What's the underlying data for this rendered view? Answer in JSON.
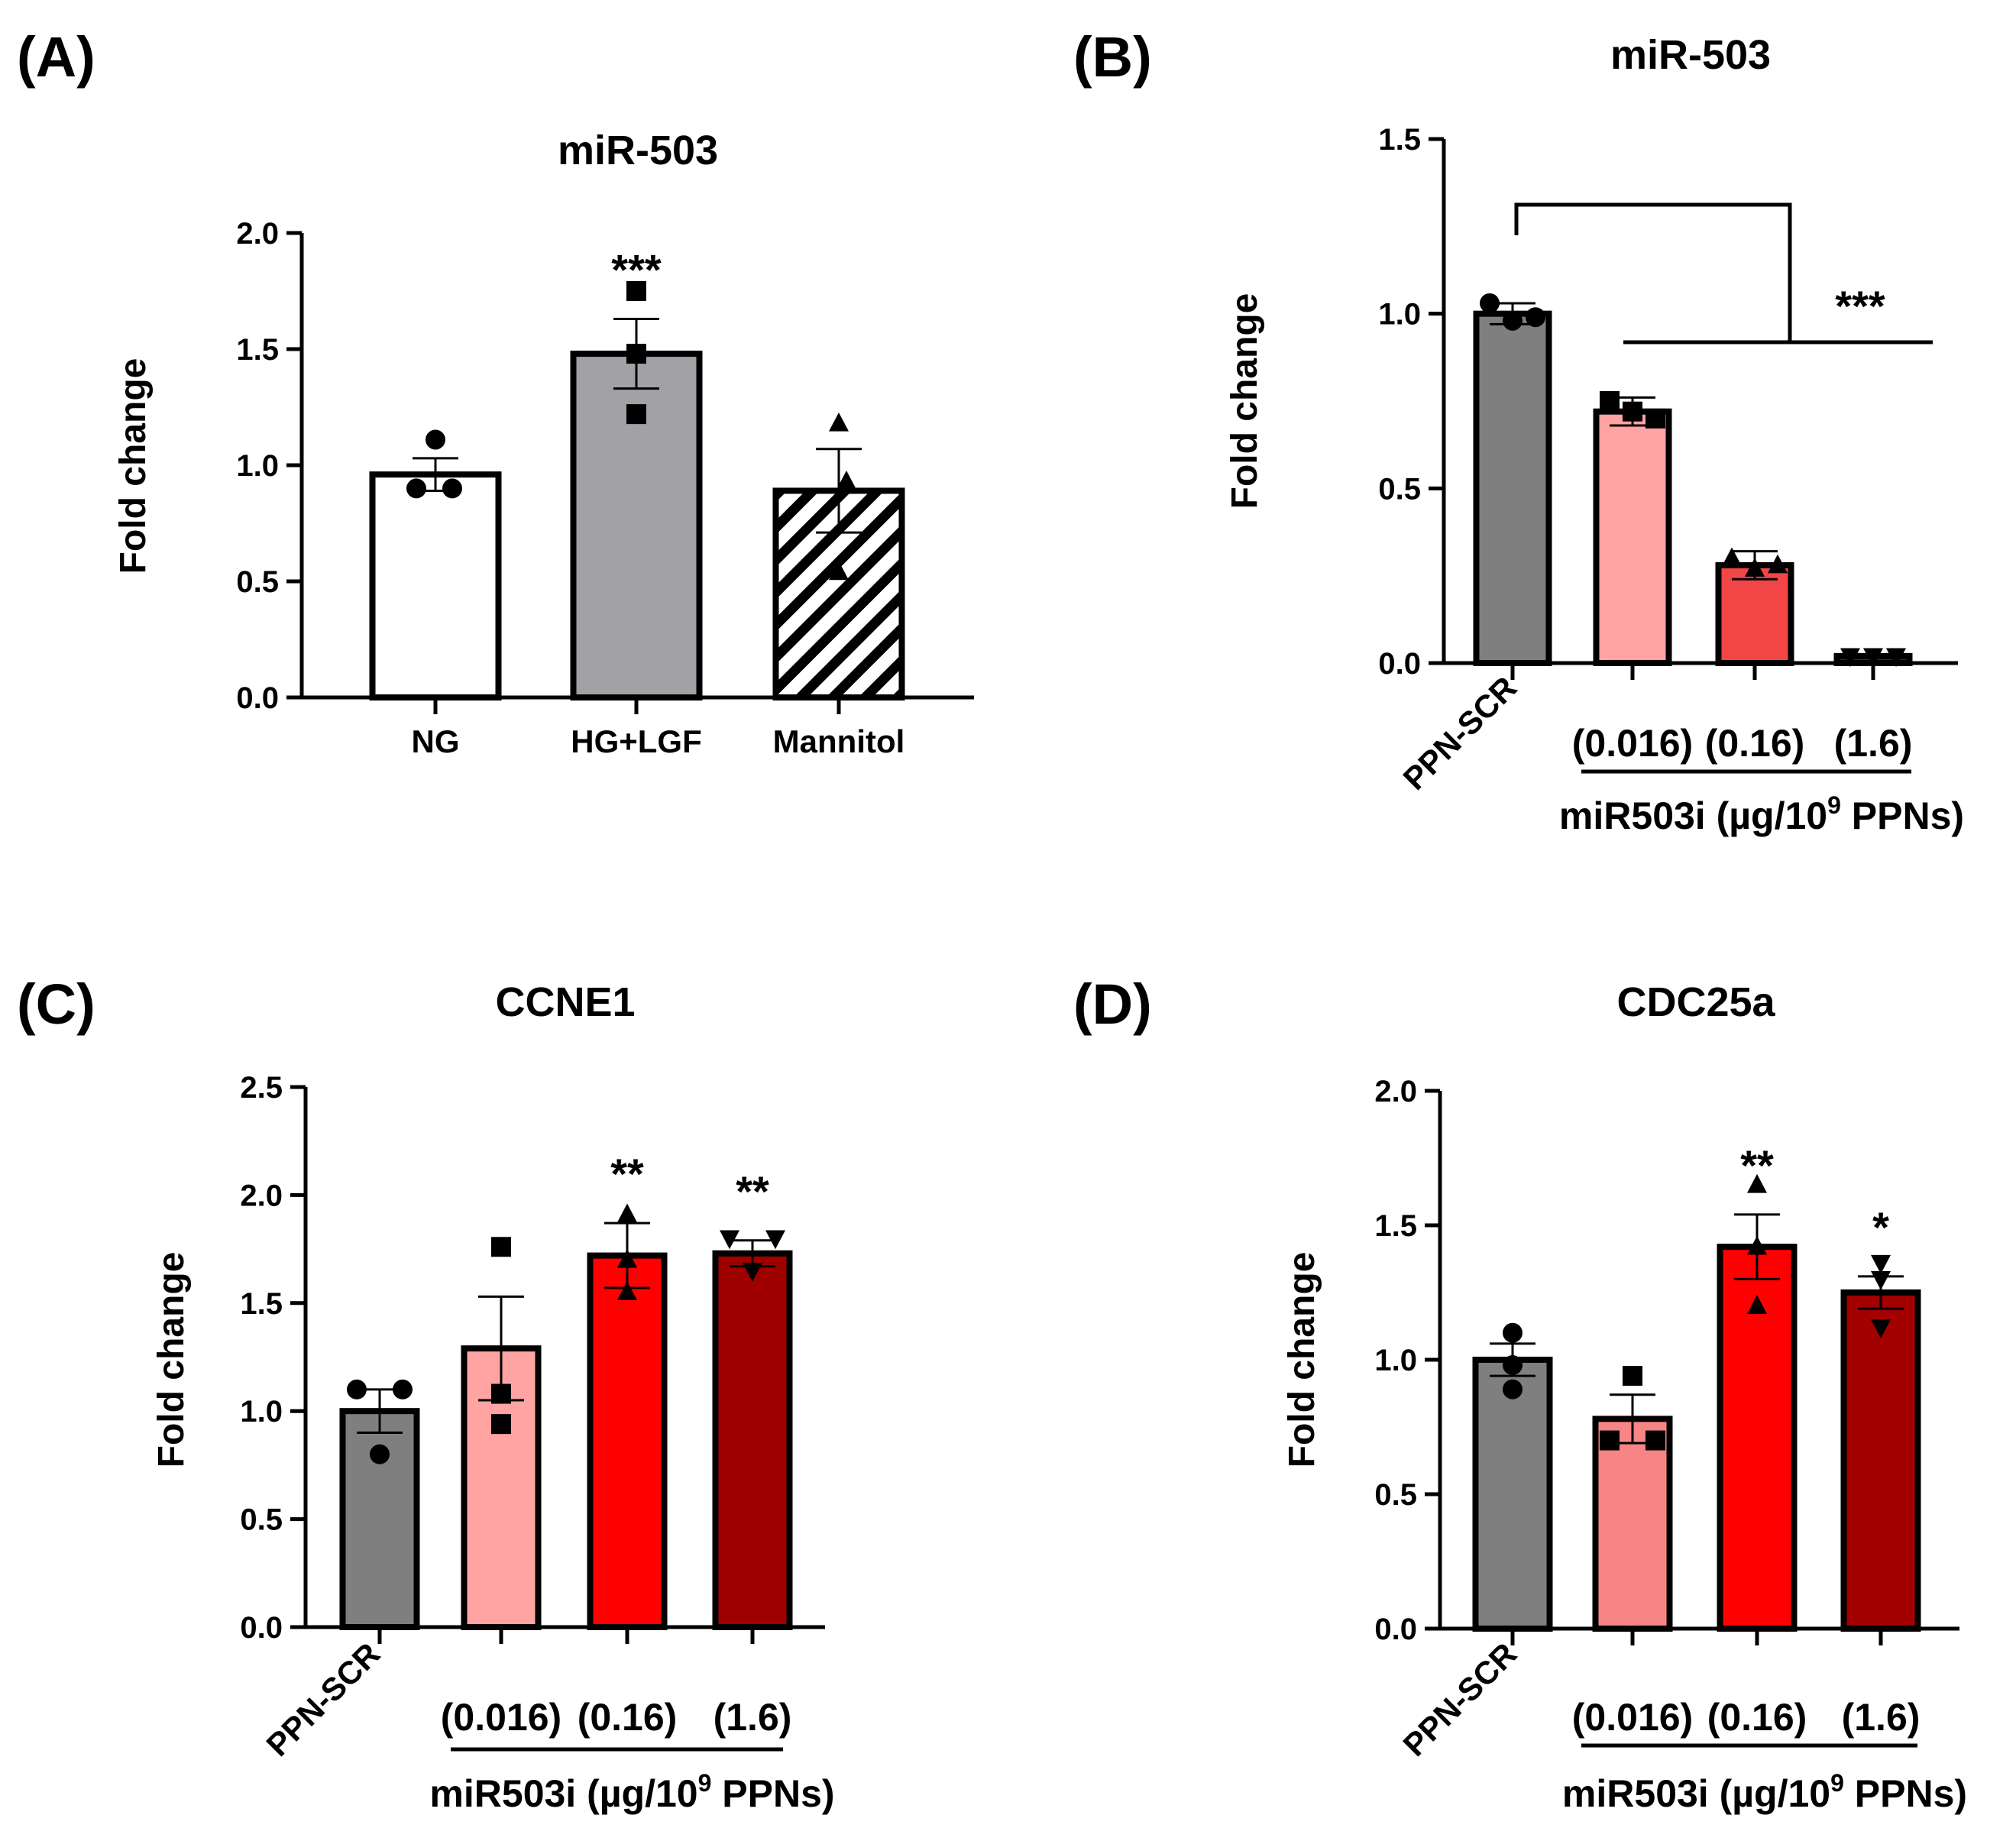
{
  "chart_data": [
    {
      "panel": "(A)",
      "type": "bar",
      "title": "miR-503",
      "ylabel": "Fold change",
      "xlabel": "",
      "ylim": [
        0,
        2.0
      ],
      "yticks": [
        "0.0",
        "0.5",
        "1.0",
        "1.5",
        "2.0"
      ],
      "categories": [
        "NG",
        "HG+LGF",
        "Mannitol"
      ],
      "values": [
        0.96,
        1.48,
        0.89
      ],
      "errors": [
        0.07,
        0.15,
        0.18
      ],
      "points": [
        [
          1.11,
          0.9,
          0.9
        ],
        [
          1.75,
          1.48,
          1.22
        ],
        [
          1.18,
          0.93,
          0.54
        ]
      ],
      "markers": [
        "circle",
        "square",
        "triangle"
      ],
      "fills": [
        "#ffffff",
        "#a1a1a6",
        "hatch"
      ],
      "significance": [
        "",
        "***",
        ""
      ]
    },
    {
      "panel": "(B)",
      "type": "bar",
      "title": "miR-503",
      "ylabel": "Fold change",
      "ylim": [
        0,
        1.5
      ],
      "yticks": [
        "0.0",
        "0.5",
        "1.0",
        "1.5"
      ],
      "categories": [
        "PPN-SCR",
        "(0.016)",
        "(0.16)",
        "(1.6)"
      ],
      "group_label_prefix": "miR503i (µg/10",
      "group_label_sup": "9",
      "group_label_suffix": " PPNs)",
      "values": [
        1.0,
        0.72,
        0.28,
        0.02
      ],
      "errors": [
        0.03,
        0.04,
        0.04,
        0.0
      ],
      "points": [
        [
          1.03,
          0.98,
          0.99
        ],
        [
          0.75,
          0.7,
          0.72
        ],
        [
          0.3,
          0.27,
          0.28
        ],
        [
          0.02,
          0.02,
          0.02
        ]
      ],
      "markers": [
        "circle",
        "square",
        "triangle",
        "triangle-down"
      ],
      "fills": [
        "#7f7f7f",
        "#ffa3a3",
        "#f24646",
        "#9e0000"
      ],
      "bracket_label": "***"
    },
    {
      "panel": "(C)",
      "type": "bar",
      "title": "CCNE1",
      "ylabel": "Fold change",
      "ylim": [
        0,
        2.5
      ],
      "yticks": [
        "0.0",
        "0.5",
        "1.0",
        "1.5",
        "2.0",
        "2.5"
      ],
      "categories": [
        "PPN-SCR",
        "(0.016)",
        "(0.16)",
        "(1.6)"
      ],
      "group_label_prefix": "miR503i (µg/10",
      "group_label_sup": "9",
      "group_label_suffix": " PPNs)",
      "values": [
        1.0,
        1.29,
        1.72,
        1.73
      ],
      "errors": [
        0.1,
        0.24,
        0.15,
        0.06
      ],
      "points": [
        [
          1.1,
          1.1,
          0.8
        ],
        [
          1.76,
          1.08,
          0.94
        ],
        [
          1.91,
          1.7,
          1.55
        ],
        [
          1.8,
          1.8,
          1.65
        ]
      ],
      "markers": [
        "circle",
        "square",
        "triangle",
        "triangle-down"
      ],
      "fills": [
        "#7f7f7f",
        "#ffa3a3",
        "#ff0000",
        "#9e0000"
      ],
      "significance": [
        "",
        "",
        "**",
        "**"
      ]
    },
    {
      "panel": "(D)",
      "type": "bar",
      "title": "CDC25a",
      "ylabel": "Fold change",
      "ylim": [
        0,
        2.0
      ],
      "yticks": [
        "0.0",
        "0.5",
        "1.0",
        "1.5",
        "2.0"
      ],
      "categories": [
        "PPN-SCR",
        "(0.016)",
        "(0.16)",
        "(1.6)"
      ],
      "group_label_prefix": "miR503i (µg/10",
      "group_label_sup": "9",
      "group_label_suffix": " PPNs)",
      "values": [
        1.0,
        0.78,
        1.42,
        1.25
      ],
      "errors": [
        0.06,
        0.09,
        0.12,
        0.06
      ],
      "points": [
        [
          1.1,
          0.98,
          0.89
        ],
        [
          0.94,
          0.7,
          0.7
        ],
        [
          1.65,
          1.42,
          1.2
        ],
        [
          1.36,
          1.3,
          1.12
        ]
      ],
      "markers": [
        "circle",
        "square",
        "triangle",
        "triangle-down"
      ],
      "fills": [
        "#7f7f7f",
        "#f78585",
        "#ff0000",
        "#a30000"
      ],
      "significance": [
        "",
        "",
        "**",
        "*"
      ]
    }
  ]
}
